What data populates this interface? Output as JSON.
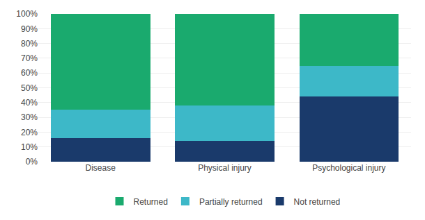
{
  "chart_data": {
    "type": "bar",
    "stacked": true,
    "categories": [
      "Disease",
      "Physical injury",
      "Psychological injury"
    ],
    "series": [
      {
        "name": "Not returned",
        "color": "#1a3a6b",
        "values": [
          0.16,
          0.14,
          0.44
        ]
      },
      {
        "name": "Partially returned",
        "color": "#3db8c8",
        "values": [
          0.19,
          0.24,
          0.21
        ]
      },
      {
        "name": "Returned",
        "color": "#1aaa6e",
        "values": [
          0.65,
          0.62,
          0.35
        ]
      }
    ],
    "ylim": [
      0,
      1.0
    ],
    "yticks": [
      {
        "value": 0,
        "label": "0%"
      },
      {
        "value": 0.1,
        "label": "10%"
      },
      {
        "value": 0.2,
        "label": "20%"
      },
      {
        "value": 0.3,
        "label": "30%"
      },
      {
        "value": 0.4,
        "label": "40%"
      },
      {
        "value": 0.5,
        "label": "50%"
      },
      {
        "value": 0.6,
        "label": "60%"
      },
      {
        "value": 0.7,
        "label": "70%"
      },
      {
        "value": 0.8,
        "label": "80%"
      },
      {
        "value": 0.9,
        "label": "90%"
      },
      {
        "value": 1.0,
        "label": "100%"
      }
    ],
    "grid": true,
    "legend": "bottom"
  }
}
